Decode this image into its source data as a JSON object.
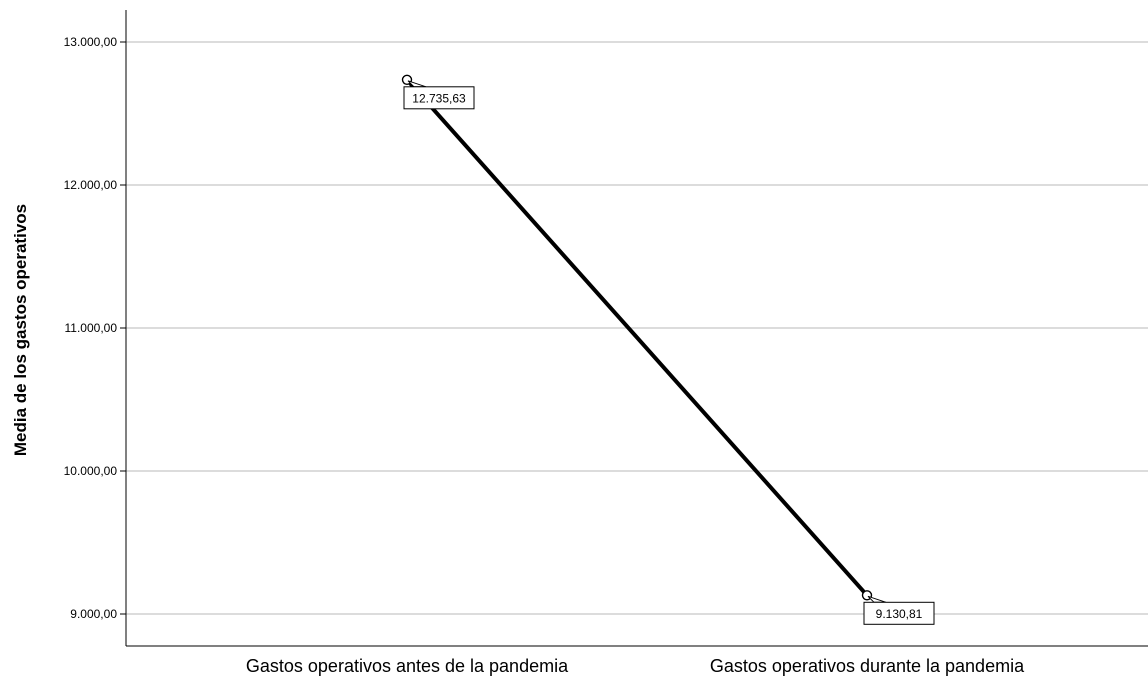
{
  "chart_data": {
    "type": "line",
    "title": "",
    "xlabel": "",
    "ylabel": "Media de los gastos operativos",
    "categories": [
      "Gastos operativos antes de la pandemia",
      "Gastos operativos durante la pandemia"
    ],
    "series": [
      {
        "values": [
          12735.63,
          9130.81
        ]
      }
    ],
    "data_labels": [
      "12.735,63",
      "9.130,81"
    ],
    "y_ticks": [
      9000,
      10000,
      11000,
      12000,
      13000
    ],
    "y_tick_labels": [
      "9.000,00",
      "10.000,00",
      "11.000,00",
      "12.000,00",
      "13.000,00"
    ],
    "ylim": [
      8800,
      13200
    ],
    "grid": true,
    "line_color": "#000000",
    "grid_color": "#c8c8c8"
  }
}
